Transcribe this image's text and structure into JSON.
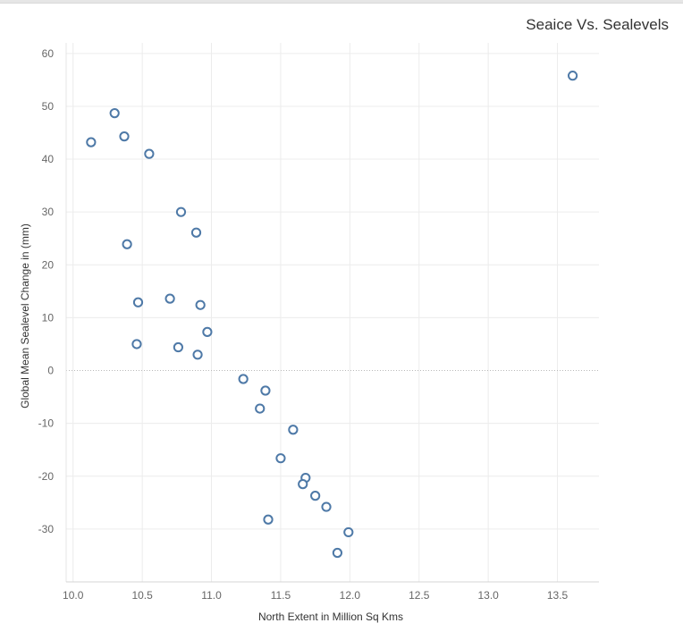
{
  "chart_data": {
    "type": "scatter",
    "title": "Seaice Vs. Sealevels",
    "xlabel": "North Extent in Million Sq Kms",
    "ylabel": "Global Mean Sealevel Change in (mm)",
    "xlim": [
      9.95,
      13.8
    ],
    "ylim": [
      -40,
      62
    ],
    "xticks": [
      "10.0",
      "10.5",
      "11.0",
      "11.5",
      "12.0",
      "12.5",
      "13.0",
      "13.5"
    ],
    "xtick_values": [
      10.0,
      10.5,
      11.0,
      11.5,
      12.0,
      12.5,
      13.0,
      13.5
    ],
    "yticks": [
      "60",
      "50",
      "40",
      "30",
      "20",
      "10",
      "0",
      "-10",
      "-20",
      "-30"
    ],
    "ytick_values": [
      60,
      50,
      40,
      30,
      20,
      10,
      0,
      -10,
      -20,
      -30
    ],
    "grid": true,
    "zero_line": "dotted",
    "marker_color": "#4e79a7",
    "points": [
      {
        "x": 10.13,
        "y": 43.2
      },
      {
        "x": 10.3,
        "y": 48.7
      },
      {
        "x": 10.37,
        "y": 44.3
      },
      {
        "x": 10.55,
        "y": 41.0
      },
      {
        "x": 10.78,
        "y": 30.0
      },
      {
        "x": 10.89,
        "y": 26.1
      },
      {
        "x": 10.39,
        "y": 23.9
      },
      {
        "x": 10.47,
        "y": 12.9
      },
      {
        "x": 10.7,
        "y": 13.6
      },
      {
        "x": 10.92,
        "y": 12.4
      },
      {
        "x": 10.46,
        "y": 5.0
      },
      {
        "x": 10.76,
        "y": 4.4
      },
      {
        "x": 10.9,
        "y": 3.0
      },
      {
        "x": 10.97,
        "y": 7.3
      },
      {
        "x": 11.23,
        "y": -1.6
      },
      {
        "x": 11.39,
        "y": -3.8
      },
      {
        "x": 11.35,
        "y": -7.2
      },
      {
        "x": 11.59,
        "y": -11.2
      },
      {
        "x": 11.5,
        "y": -16.6
      },
      {
        "x": 11.68,
        "y": -20.3
      },
      {
        "x": 11.66,
        "y": -21.5
      },
      {
        "x": 11.75,
        "y": -23.7
      },
      {
        "x": 11.83,
        "y": -25.8
      },
      {
        "x": 11.41,
        "y": -28.2
      },
      {
        "x": 11.99,
        "y": -30.6
      },
      {
        "x": 11.91,
        "y": -34.5
      },
      {
        "x": 13.61,
        "y": 55.8
      }
    ]
  }
}
